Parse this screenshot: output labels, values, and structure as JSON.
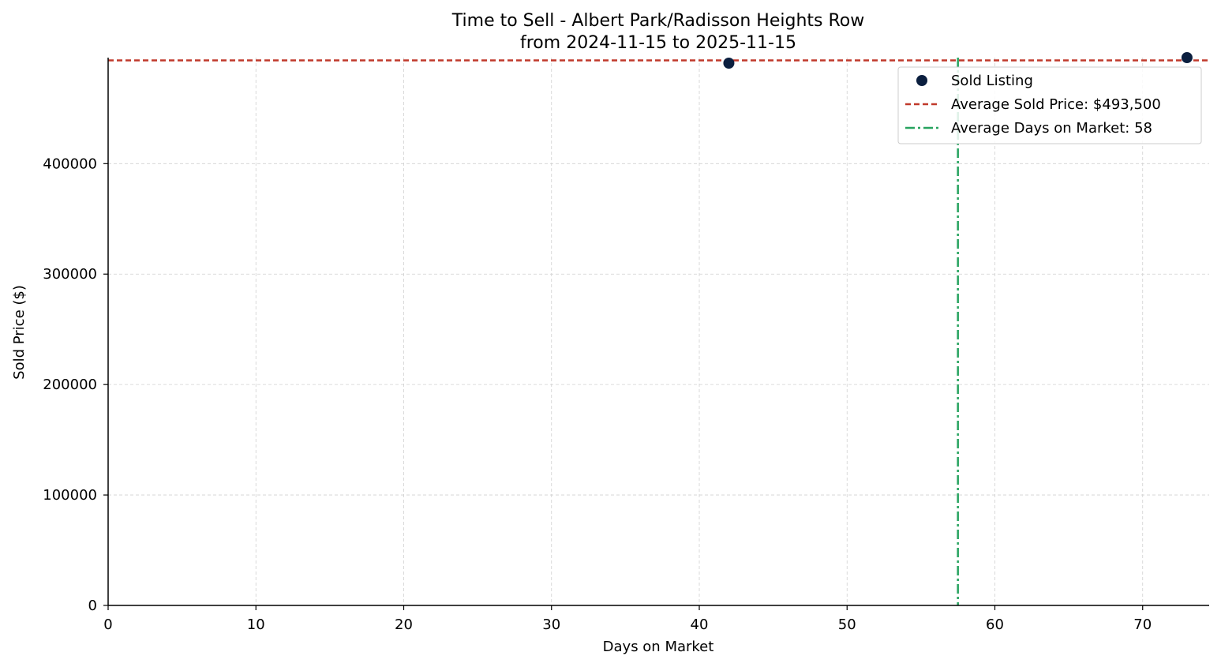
{
  "chart_data": {
    "type": "scatter",
    "title": "Time to Sell - Albert Park/Radisson Heights Row",
    "subtitle": "from 2024-11-15 to 2025-11-15",
    "xlabel": "Days on Market",
    "ylabel": "Sold Price ($)",
    "xlim": [
      0,
      74.5
    ],
    "ylim": [
      0,
      496000
    ],
    "xticks": [
      0,
      10,
      20,
      30,
      40,
      50,
      60,
      70
    ],
    "yticks": [
      0,
      100000,
      200000,
      300000,
      400000
    ],
    "grid": true,
    "legend_position": "top-right",
    "series": [
      {
        "name": "Sold Listing",
        "color": "#0b1f3f",
        "points": [
          {
            "x": 42,
            "y": 491000
          },
          {
            "x": 73,
            "y": 496000
          }
        ]
      }
    ],
    "reference_lines": {
      "avg_price": {
        "label": "Average Sold Price: $493,500",
        "value": 493500,
        "color": "#c0392b"
      },
      "avg_days": {
        "label": "Average Days on Market: 58",
        "value": 57.5,
        "color": "#27a35f"
      }
    }
  }
}
